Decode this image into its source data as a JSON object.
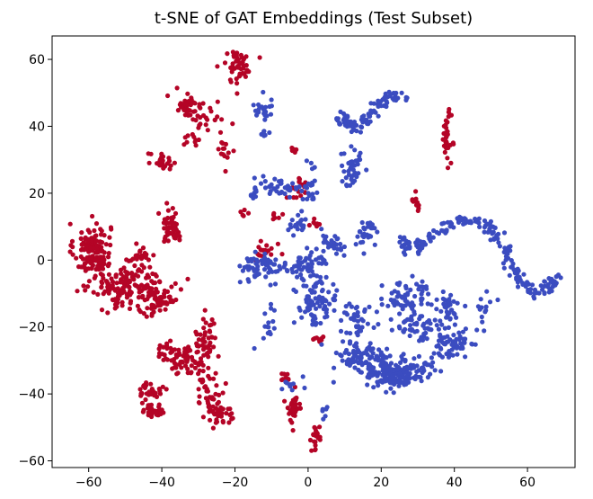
{
  "chart_data": {
    "type": "scatter",
    "title": "t-SNE of GAT Embeddings (Test Subset)",
    "xlabel": "",
    "ylabel": "",
    "xlim": [
      -70,
      73
    ],
    "ylim": [
      -62,
      67
    ],
    "xticks": [
      -60,
      -40,
      -20,
      0,
      20,
      40,
      60
    ],
    "yticks": [
      -60,
      -40,
      -20,
      0,
      20,
      40,
      60
    ],
    "grid": false,
    "colors": {
      "red": "#b40426",
      "blue": "#3b4cc0"
    },
    "series": [
      {
        "color": "#b40426",
        "clusters": [
          {
            "x": -59,
            "y": 3,
            "sx": 2.5,
            "sy": 4,
            "n": 140
          },
          {
            "x": -49,
            "y": -8,
            "sx": 5,
            "sy": 3,
            "n": 150
          },
          {
            "x": -41,
            "y": -12,
            "sx": 3,
            "sy": 3,
            "n": 60
          },
          {
            "x": -46,
            "y": 1,
            "sx": 2,
            "sy": 1.5,
            "n": 25
          },
          {
            "x": -37,
            "y": 10,
            "sx": 1.5,
            "sy": 2.5,
            "n": 50
          },
          {
            "x": -40,
            "y": 29,
            "sx": 2,
            "sy": 1.5,
            "n": 25
          },
          {
            "x": -33,
            "y": 47,
            "sx": 2,
            "sy": 2,
            "n": 30
          },
          {
            "x": -28,
            "y": 43,
            "sx": 2.5,
            "sy": 2.5,
            "n": 25
          },
          {
            "x": -32,
            "y": 36,
            "sx": 1.2,
            "sy": 1.2,
            "n": 10
          },
          {
            "x": -23,
            "y": 33,
            "sx": 1,
            "sy": 3,
            "n": 15
          },
          {
            "x": -19,
            "y": 58,
            "sx": 2,
            "sy": 2.5,
            "n": 50
          },
          {
            "x": -39,
            "y": -27,
            "sx": 1.5,
            "sy": 1.5,
            "n": 15
          },
          {
            "x": -34,
            "y": -30,
            "sx": 2.5,
            "sy": 2,
            "n": 60
          },
          {
            "x": -28,
            "y": -24,
            "sx": 1.5,
            "sy": 4,
            "n": 50
          },
          {
            "x": -43,
            "y": -39,
            "sx": 1.5,
            "sy": 1.5,
            "n": 30
          },
          {
            "x": -42,
            "y": -45,
            "sx": 1.5,
            "sy": 1,
            "n": 35
          },
          {
            "x": -27,
            "y": -40,
            "sx": 2,
            "sy": 3,
            "n": 40
          },
          {
            "x": -24,
            "y": -46,
            "sx": 2,
            "sy": 1.5,
            "n": 35
          },
          {
            "x": -6,
            "y": -35,
            "sx": 0.8,
            "sy": 0.8,
            "n": 8
          },
          {
            "x": -4,
            "y": -45,
            "sx": 1.2,
            "sy": 2.5,
            "n": 30
          },
          {
            "x": 2,
            "y": -53,
            "sx": 1,
            "sy": 2,
            "n": 20
          },
          {
            "x": 3,
            "y": -23,
            "sx": 0.8,
            "sy": 1,
            "n": 8
          },
          {
            "x": -11,
            "y": 2,
            "sx": 1.5,
            "sy": 1.5,
            "n": 20
          },
          {
            "x": -18,
            "y": 14,
            "sx": 1,
            "sy": 1,
            "n": 5
          },
          {
            "x": -3,
            "y": 21,
            "sx": 1.5,
            "sy": 2,
            "n": 20
          },
          {
            "x": -4,
            "y": 33,
            "sx": 0.5,
            "sy": 0.5,
            "n": 8
          },
          {
            "x": 2,
            "y": 11,
            "sx": 0.8,
            "sy": 0.8,
            "n": 8
          },
          {
            "x": 38,
            "y": 37,
            "sx": 0.6,
            "sy": 3.5,
            "n": 35
          },
          {
            "x": 29,
            "y": 17,
            "sx": 0.6,
            "sy": 1.5,
            "n": 12
          },
          {
            "x": -9,
            "y": 13,
            "sx": 0.8,
            "sy": 0.8,
            "n": 6
          }
        ]
      },
      {
        "color": "#3b4cc0",
        "clusters": [
          {
            "x": -12,
            "y": -2,
            "sx": 3,
            "sy": 2,
            "n": 60
          },
          {
            "x": -1,
            "y": -2,
            "sx": 3,
            "sy": 2.5,
            "n": 50
          },
          {
            "x": -8,
            "y": 22,
            "sx": 3,
            "sy": 1.5,
            "n": 40
          },
          {
            "x": -3,
            "y": 11,
            "sx": 1.2,
            "sy": 1.5,
            "n": 20
          },
          {
            "x": 1,
            "y": 23,
            "sx": 1.2,
            "sy": 3,
            "n": 20
          },
          {
            "x": -12,
            "y": 45,
            "sx": 1.5,
            "sy": 2,
            "n": 20
          },
          {
            "x": 12,
            "y": 27,
            "sx": 1.5,
            "sy": 3,
            "n": 40
          },
          {
            "x": 7,
            "y": 5,
            "sx": 2,
            "sy": 2,
            "n": 30
          },
          {
            "x": 16,
            "y": 8,
            "sx": 1.5,
            "sy": 2,
            "n": 30
          },
          {
            "x": 2,
            "y": -13,
            "sx": 3,
            "sy": 4,
            "n": 80
          },
          {
            "x": 13,
            "y": -18,
            "sx": 2.5,
            "sy": 3,
            "n": 40
          },
          {
            "x": -10,
            "y": -18,
            "sx": 1.2,
            "sy": 3,
            "n": 15
          },
          {
            "x": -5,
            "y": -37,
            "sx": 1.5,
            "sy": 1.5,
            "n": 10
          },
          {
            "x": 5,
            "y": -45,
            "sx": 0.8,
            "sy": 1,
            "n": 6
          },
          {
            "x": 26,
            "y": -13,
            "sx": 3,
            "sy": 3,
            "n": 60
          },
          {
            "x": 38,
            "y": -15,
            "sx": 2,
            "sy": 3,
            "n": 40
          },
          {
            "x": 31,
            "y": -20,
            "sx": 3,
            "sy": 2,
            "n": 40
          },
          {
            "x": 26,
            "y": 5,
            "sx": 1.5,
            "sy": 1.5,
            "n": 15
          },
          {
            "x": 23,
            "y": -34,
            "sx": 5,
            "sy": 2.5,
            "n": 150
          },
          {
            "x": 13,
            "y": -29,
            "sx": 3,
            "sy": 2,
            "n": 50
          },
          {
            "x": 40,
            "y": -26,
            "sx": 3,
            "sy": 2,
            "n": 40
          },
          {
            "x": 31,
            "y": -9,
            "sx": 1.5,
            "sy": 1.5,
            "n": 10
          },
          {
            "x": -15,
            "y": 20,
            "sx": 0.8,
            "sy": 1,
            "n": 8
          },
          {
            "x": -12,
            "y": 38,
            "sx": 0.8,
            "sy": 0.8,
            "n": 6
          }
        ],
        "paths": [
          {
            "points": [
              [
                8,
                43
              ],
              [
                13,
                39
              ],
              [
                18,
                45
              ],
              [
                22,
                50
              ],
              [
                27,
                48
              ]
            ],
            "spread": 1.0,
            "n": 90
          },
          {
            "points": [
              [
                28,
                2
              ],
              [
                36,
                9
              ],
              [
                44,
                12
              ],
              [
                50,
                10
              ],
              [
                54,
                3
              ],
              [
                57,
                -5
              ],
              [
                62,
                -10
              ],
              [
                69,
                -5
              ]
            ],
            "spread": 1.0,
            "n": 180
          },
          {
            "points": [
              [
                50,
                -10
              ],
              [
                45,
                -20
              ],
              [
                38,
                -28
              ],
              [
                30,
                -32
              ],
              [
                22,
                -30
              ],
              [
                15,
                -25
              ]
            ],
            "spread": 1.5,
            "n": 70
          }
        ]
      }
    ]
  }
}
